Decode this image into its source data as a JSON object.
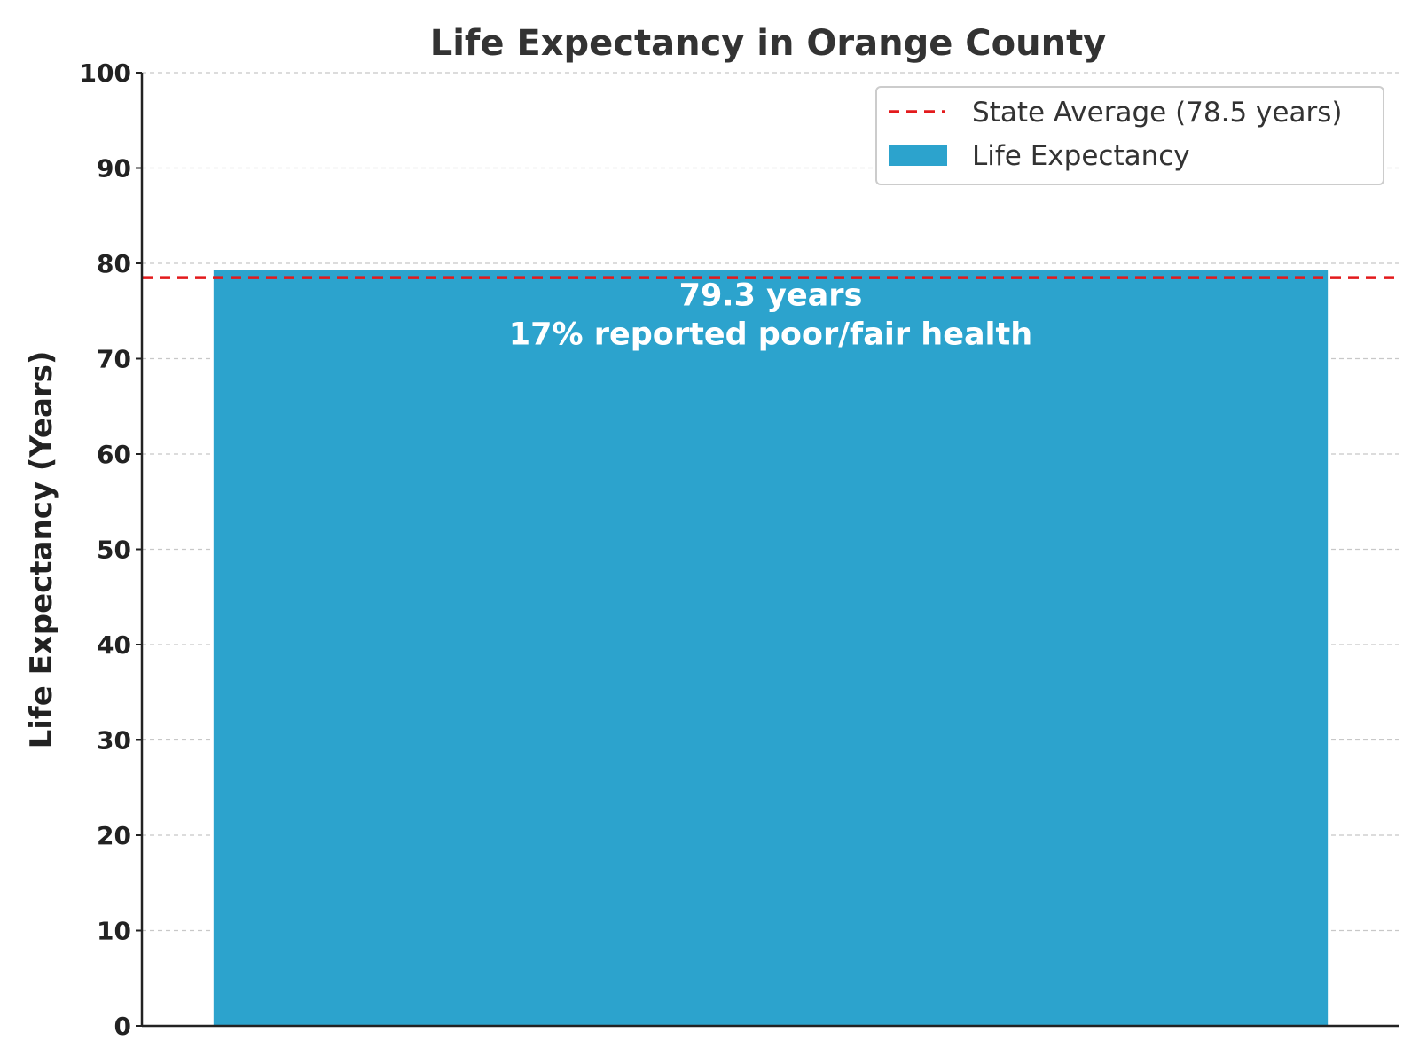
{
  "chart_data": {
    "type": "bar",
    "title": "Life Expectancy in Orange County",
    "xlabel": "",
    "ylabel": "Life Expectancy (Years)",
    "ylim": [
      0,
      100
    ],
    "yticks": [
      0,
      10,
      20,
      30,
      40,
      50,
      60,
      70,
      80,
      90,
      100
    ],
    "grid": true,
    "categories": [
      ""
    ],
    "series": [
      {
        "name": "Life Expectancy",
        "values": [
          79.3
        ],
        "color": "#2ca3cd",
        "labels": [
          "79.3 years",
          "17% reported poor/fair health"
        ]
      }
    ],
    "reference_line": {
      "name": "State Average (78.5 years)",
      "value": 78.5,
      "color": "#e31a1c",
      "style": "dashed"
    },
    "legend": {
      "placement": "top-right",
      "entries": [
        "State Average (78.5 years)",
        "Life Expectancy"
      ]
    }
  }
}
